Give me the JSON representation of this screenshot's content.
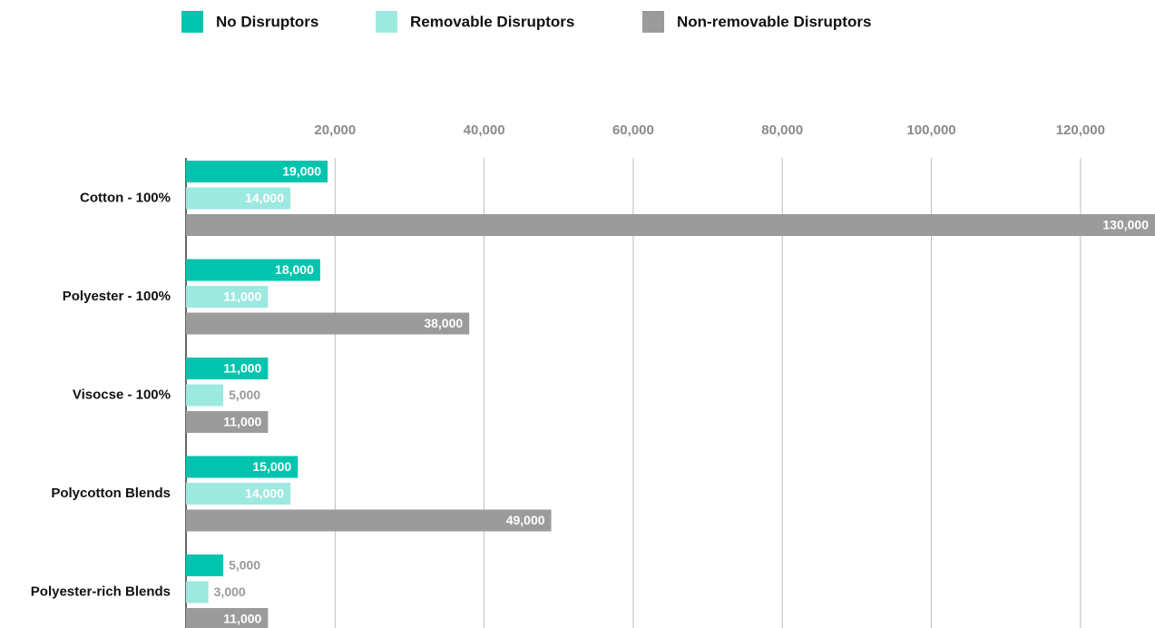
{
  "chart_data": {
    "type": "bar",
    "orientation": "horizontal",
    "categories": [
      "Cotton - 100%",
      "Polyester - 100%",
      "Visocse - 100%",
      "Polycotton Blends",
      "Polyester-rich Blends"
    ],
    "series": [
      {
        "name": "No Disruptors",
        "color": "#00c4ad",
        "values": [
          19000,
          18000,
          11000,
          15000,
          5000
        ],
        "value_labels": [
          "19,000",
          "18,000",
          "11,000",
          "15,000",
          "5,000"
        ]
      },
      {
        "name": "Removable Disruptors",
        "color": "#9de9e0",
        "values": [
          14000,
          11000,
          5000,
          14000,
          3000
        ],
        "value_labels": [
          "14,000",
          "11,000",
          "5,000",
          "14,000",
          "3,000"
        ]
      },
      {
        "name": "Non-removable Disruptors",
        "color": "#9b9b9b",
        "values": [
          130000,
          38000,
          11000,
          49000,
          11000
        ],
        "value_labels": [
          "130,000",
          "38,000",
          "11,000",
          "49,000",
          "11,000"
        ]
      }
    ],
    "xlim": [
      0,
      130000
    ],
    "xticks": [
      {
        "value": 20000,
        "label": "20,000"
      },
      {
        "value": 40000,
        "label": "40,000"
      },
      {
        "value": 60000,
        "label": "60,000"
      },
      {
        "value": 80000,
        "label": "80,000"
      },
      {
        "value": 100000,
        "label": "100,000"
      },
      {
        "value": 120000,
        "label": "120,000"
      }
    ],
    "grid": true,
    "legend": "top"
  }
}
